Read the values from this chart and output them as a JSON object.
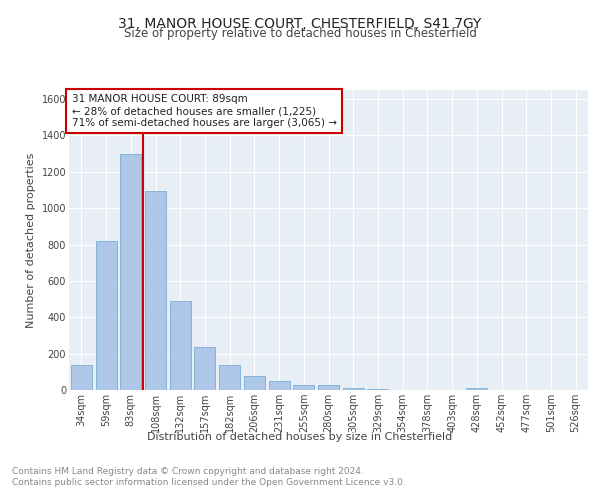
{
  "title": "31, MANOR HOUSE COURT, CHESTERFIELD, S41 7GY",
  "subtitle": "Size of property relative to detached houses in Chesterfield",
  "xlabel": "Distribution of detached houses by size in Chesterfield",
  "ylabel": "Number of detached properties",
  "categories": [
    "34sqm",
    "59sqm",
    "83sqm",
    "108sqm",
    "132sqm",
    "157sqm",
    "182sqm",
    "206sqm",
    "231sqm",
    "255sqm",
    "280sqm",
    "305sqm",
    "329sqm",
    "354sqm",
    "378sqm",
    "403sqm",
    "428sqm",
    "452sqm",
    "477sqm",
    "501sqm",
    "526sqm"
  ],
  "values": [
    140,
    820,
    1300,
    1095,
    490,
    235,
    135,
    75,
    48,
    30,
    25,
    12,
    5,
    0,
    0,
    0,
    10,
    0,
    0,
    0,
    0
  ],
  "bar_color": "#aec6e8",
  "bar_edge_color": "#7aaed6",
  "vline_x": 2.5,
  "vline_color": "#cc0000",
  "annotation_text": "31 MANOR HOUSE COURT: 89sqm\n← 28% of detached houses are smaller (1,225)\n71% of semi-detached houses are larger (3,065) →",
  "annotation_box_color": "#ffffff",
  "annotation_box_edge": "#cc0000",
  "ylim": [
    0,
    1650
  ],
  "yticks": [
    0,
    200,
    400,
    600,
    800,
    1000,
    1200,
    1400,
    1600
  ],
  "bg_color": "#e8eef6",
  "grid_color": "#ffffff",
  "footer_text": "Contains HM Land Registry data © Crown copyright and database right 2024.\nContains public sector information licensed under the Open Government Licence v3.0.",
  "title_fontsize": 10,
  "subtitle_fontsize": 8.5,
  "axis_label_fontsize": 8,
  "tick_fontsize": 7,
  "annotation_fontsize": 7.5,
  "footer_fontsize": 6.5
}
